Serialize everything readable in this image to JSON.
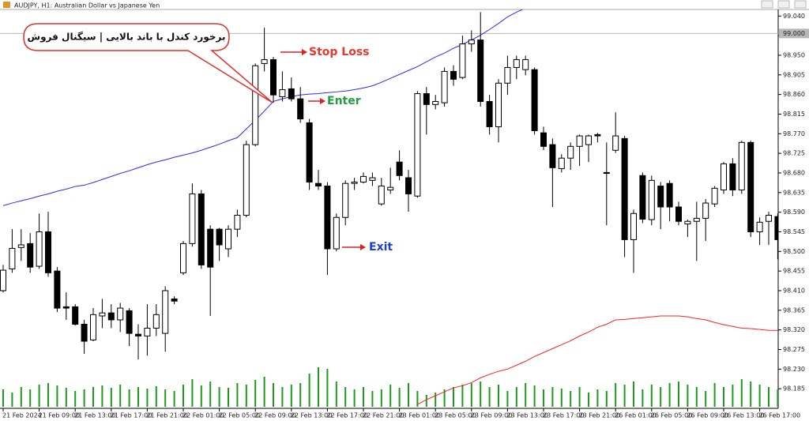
{
  "chart_data": {
    "type": "candlestick",
    "title": "AUDJPY, H1:  Australian Dollar vs Japanese Yen",
    "categories": [
      "21 Feb 2024",
      null,
      null,
      null,
      "21 Feb 09:00",
      null,
      null,
      null,
      "21 Feb 13:00",
      null,
      null,
      null,
      "21 Feb 17:00",
      null,
      null,
      null,
      "21 Feb 21:00",
      null,
      null,
      null,
      "22 Feb 01:00",
      null,
      null,
      null,
      "22 Feb 05:00",
      null,
      null,
      null,
      "22 Feb 09:00",
      null,
      null,
      null,
      "22 Feb 13:00",
      null,
      null,
      null,
      "22 Feb 17:00",
      null,
      null,
      null,
      "22 Feb 21:00",
      null,
      null,
      null,
      "23 Feb 01:00",
      null,
      null,
      null,
      "23 Feb 05:00",
      null,
      null,
      null,
      "23 Feb 09:00",
      null,
      null,
      null,
      "23 Feb 13:00",
      null,
      null,
      null,
      "23 Feb 17:00",
      null,
      null,
      null,
      "23 Feb 21:00",
      null,
      null,
      null,
      "26 Feb 01:00",
      null,
      null,
      null,
      "26 Feb 05:00",
      null,
      null,
      null,
      "26 Feb 09:00",
      null,
      null,
      null,
      "26 Feb 13:00",
      null,
      null,
      null,
      "26 Feb 17:00",
      null,
      null
    ],
    "open": [
      98.41,
      98.46,
      98.509,
      98.518,
      98.466,
      98.545,
      98.455,
      98.373,
      98.373,
      98.333,
      98.297,
      98.352,
      98.359,
      98.343,
      98.364,
      98.31,
      98.306,
      98.324,
      98.312,
      98.391,
      98.451,
      98.518,
      98.632,
      98.551,
      98.551,
      98.506,
      98.551,
      98.583,
      98.745,
      98.931,
      98.94,
      98.855,
      98.873,
      98.85,
      98.795,
      98.656,
      98.65,
      98.506,
      98.578,
      98.656,
      98.659,
      98.663,
      98.609,
      98.641,
      98.705,
      98.669,
      98.627,
      98.862,
      98.837,
      98.841,
      98.913,
      98.899,
      98.976,
      98.985,
      98.844,
      98.786,
      98.886,
      98.922,
      98.917,
      98.917,
      98.772,
      98.745,
      98.69,
      98.714,
      98.741,
      98.745,
      98.768,
      98.681,
      98.732,
      98.759,
      98.527,
      98.674,
      98.573,
      98.65,
      98.656,
      98.602,
      98.563,
      98.569,
      98.576,
      98.609,
      98.641,
      98.701,
      98.641,
      98.75,
      98.545,
      98.569,
      98.58
    ],
    "high": [
      98.469,
      98.551,
      98.551,
      98.542,
      98.587,
      98.591,
      98.464,
      98.406,
      98.379,
      98.343,
      98.37,
      98.391,
      98.379,
      98.382,
      98.37,
      98.333,
      98.379,
      98.379,
      98.42,
      98.397,
      98.524,
      98.656,
      98.641,
      98.56,
      98.554,
      98.56,
      98.596,
      98.754,
      98.931,
      99.013,
      98.946,
      98.913,
      98.899,
      98.877,
      98.804,
      98.687,
      98.659,
      98.587,
      98.663,
      98.669,
      98.681,
      98.681,
      98.669,
      98.692,
      98.732,
      98.687,
      98.868,
      98.877,
      98.859,
      98.922,
      98.927,
      98.995,
      99.007,
      99.049,
      98.859,
      98.895,
      98.949,
      98.949,
      98.949,
      98.922,
      98.786,
      98.759,
      98.723,
      98.75,
      98.768,
      98.768,
      98.772,
      98.75,
      98.819,
      98.765,
      98.596,
      98.681,
      98.674,
      98.659,
      98.663,
      98.614,
      98.573,
      98.614,
      98.62,
      98.65,
      98.705,
      98.714,
      98.754,
      98.754,
      98.578,
      98.591,
      98.587
    ],
    "low": [
      98.406,
      98.451,
      98.478,
      98.451,
      98.46,
      98.442,
      98.361,
      98.343,
      98.33,
      98.265,
      98.294,
      98.324,
      98.324,
      98.315,
      98.283,
      98.252,
      98.261,
      98.306,
      98.27,
      98.379,
      98.446,
      98.511,
      98.46,
      98.352,
      98.478,
      98.487,
      98.533,
      98.578,
      98.741,
      98.913,
      98.841,
      98.844,
      98.844,
      98.795,
      98.641,
      98.641,
      98.446,
      98.5,
      98.56,
      98.641,
      98.656,
      98.65,
      98.605,
      98.632,
      98.663,
      98.591,
      98.623,
      98.768,
      98.826,
      98.832,
      98.88,
      98.895,
      98.958,
      98.832,
      98.768,
      98.75,
      98.859,
      98.895,
      98.904,
      98.768,
      98.732,
      98.602,
      98.681,
      98.687,
      98.696,
      98.705,
      98.75,
      98.56,
      98.726,
      98.487,
      98.451,
      98.565,
      98.56,
      98.551,
      98.569,
      98.56,
      98.533,
      98.478,
      98.524,
      98.602,
      98.632,
      98.627,
      98.632,
      98.533,
      98.515,
      98.515,
      98.482
    ],
    "close": [
      98.457,
      98.507,
      98.515,
      98.464,
      98.545,
      98.451,
      98.37,
      98.37,
      98.333,
      98.294,
      98.355,
      98.359,
      98.343,
      98.37,
      98.312,
      98.306,
      98.324,
      98.355,
      98.41,
      98.386,
      98.518,
      98.632,
      98.469,
      98.464,
      98.515,
      98.551,
      98.583,
      98.745,
      98.926,
      98.94,
      98.859,
      98.871,
      98.85,
      98.804,
      98.659,
      98.65,
      98.506,
      98.578,
      98.656,
      98.659,
      98.672,
      98.669,
      98.65,
      98.647,
      98.674,
      98.632,
      98.862,
      98.837,
      98.844,
      98.913,
      98.895,
      98.976,
      98.985,
      98.844,
      98.786,
      98.886,
      98.922,
      98.94,
      98.94,
      98.777,
      98.741,
      98.692,
      98.714,
      98.741,
      98.765,
      98.765,
      98.765,
      98.679,
      98.765,
      98.527,
      98.587,
      98.574,
      98.663,
      98.602,
      98.602,
      98.569,
      98.569,
      98.576,
      98.611,
      98.645,
      98.701,
      98.641,
      98.75,
      98.545,
      98.567,
      98.583,
      98.527
    ],
    "volume": [
      22,
      18,
      25,
      22,
      28,
      30,
      27,
      24,
      20,
      22,
      25,
      27,
      24,
      28,
      22,
      25,
      23,
      26,
      22,
      20,
      28,
      35,
      27,
      32,
      25,
      24,
      30,
      28,
      34,
      38,
      30,
      25,
      28,
      30,
      42,
      50,
      48,
      32,
      25,
      22,
      25,
      20,
      22,
      28,
      24,
      30,
      20,
      15,
      18,
      22,
      25,
      28,
      30,
      32,
      25,
      28,
      20,
      25,
      30,
      27,
      22,
      25,
      23,
      20,
      25,
      18,
      22,
      20,
      30,
      28,
      32,
      22,
      28,
      25,
      30,
      32,
      28,
      25,
      20,
      30,
      25,
      28,
      35,
      32,
      28,
      25,
      22
    ],
    "volume_color": "#1f9a1f",
    "overlays": [
      {
        "color": "#2a2aff",
        "values": [
          98.605,
          98.611,
          98.616,
          98.621,
          98.627,
          98.632,
          98.638,
          98.643,
          98.649,
          98.652,
          98.658,
          98.665,
          98.672,
          98.679,
          98.685,
          98.692,
          98.699,
          98.705,
          98.71,
          98.716,
          98.721,
          98.726,
          98.732,
          98.739,
          98.746,
          98.754,
          98.761,
          98.781,
          98.801,
          98.822,
          98.844,
          98.85,
          98.855,
          98.859,
          98.861,
          98.862,
          98.864,
          98.866,
          98.868,
          98.871,
          98.875,
          98.88,
          98.888,
          98.897,
          98.906,
          98.915,
          98.924,
          98.935,
          98.946,
          98.955,
          98.966,
          98.975,
          98.985,
          98.996,
          99.009,
          99.023,
          99.038,
          99.049,
          99.058,
          99.067,
          99.074,
          null,
          null,
          null,
          null,
          null,
          null,
          null,
          null,
          null,
          null,
          null,
          null,
          null,
          null,
          null,
          null,
          null,
          null,
          null,
          null,
          null,
          null,
          null,
          null,
          null,
          null
        ]
      },
      {
        "color": "#ff2020",
        "values": [
          null,
          null,
          null,
          null,
          null,
          null,
          null,
          null,
          null,
          null,
          null,
          null,
          null,
          null,
          null,
          null,
          null,
          null,
          null,
          null,
          null,
          null,
          null,
          null,
          null,
          null,
          null,
          null,
          null,
          null,
          null,
          null,
          null,
          null,
          null,
          null,
          null,
          null,
          null,
          null,
          null,
          null,
          null,
          null,
          null,
          null,
          98.149,
          98.16,
          98.169,
          98.178,
          98.187,
          98.192,
          98.199,
          98.21,
          98.218,
          98.225,
          98.23,
          98.239,
          98.248,
          98.259,
          98.268,
          98.277,
          98.286,
          98.295,
          98.306,
          98.315,
          98.326,
          98.333,
          98.343,
          98.344,
          98.346,
          98.348,
          98.35,
          98.352,
          98.352,
          98.352,
          98.35,
          98.346,
          98.343,
          98.337,
          98.332,
          98.328,
          98.324,
          98.323,
          98.321,
          98.319,
          98.319
        ]
      }
    ],
    "price_line": {
      "value": 99.0,
      "label": "99.000"
    },
    "ylim": [
      98.14,
      99.055
    ],
    "yticks": [
      {
        "value": 99.04,
        "label": "99.040"
      },
      {
        "value": 98.995,
        "label": "98.995"
      },
      {
        "value": 98.95,
        "label": "98.950"
      },
      {
        "value": 98.905,
        "label": "98.905"
      },
      {
        "value": 98.86,
        "label": "98.860"
      },
      {
        "value": 98.815,
        "label": "98.815"
      },
      {
        "value": 98.77,
        "label": "98.770"
      },
      {
        "value": 98.725,
        "label": "98.725"
      },
      {
        "value": 98.68,
        "label": "98.680"
      },
      {
        "value": 98.635,
        "label": "98.635"
      },
      {
        "value": 98.59,
        "label": "98.590"
      },
      {
        "value": 98.545,
        "label": "98.545"
      },
      {
        "value": 98.5,
        "label": "98.500"
      },
      {
        "value": 98.455,
        "label": "98.455"
      },
      {
        "value": 98.41,
        "label": "98.410"
      },
      {
        "value": 98.365,
        "label": "98.365"
      },
      {
        "value": 98.32,
        "label": "98.320"
      },
      {
        "value": 98.275,
        "label": "98.275"
      },
      {
        "value": 98.23,
        "label": "98.230"
      },
      {
        "value": 98.185,
        "label": "98.185"
      }
    ],
    "bubble_text": "برخورد کندل با باند بالایی | سیگنال فروش",
    "annotations": [
      {
        "text": "Stop Loss",
        "color": "#e8372e"
      },
      {
        "text": "Enter",
        "color": "#1e9e3c"
      },
      {
        "text": "Exit",
        "color": "#1a3fd8"
      }
    ]
  }
}
